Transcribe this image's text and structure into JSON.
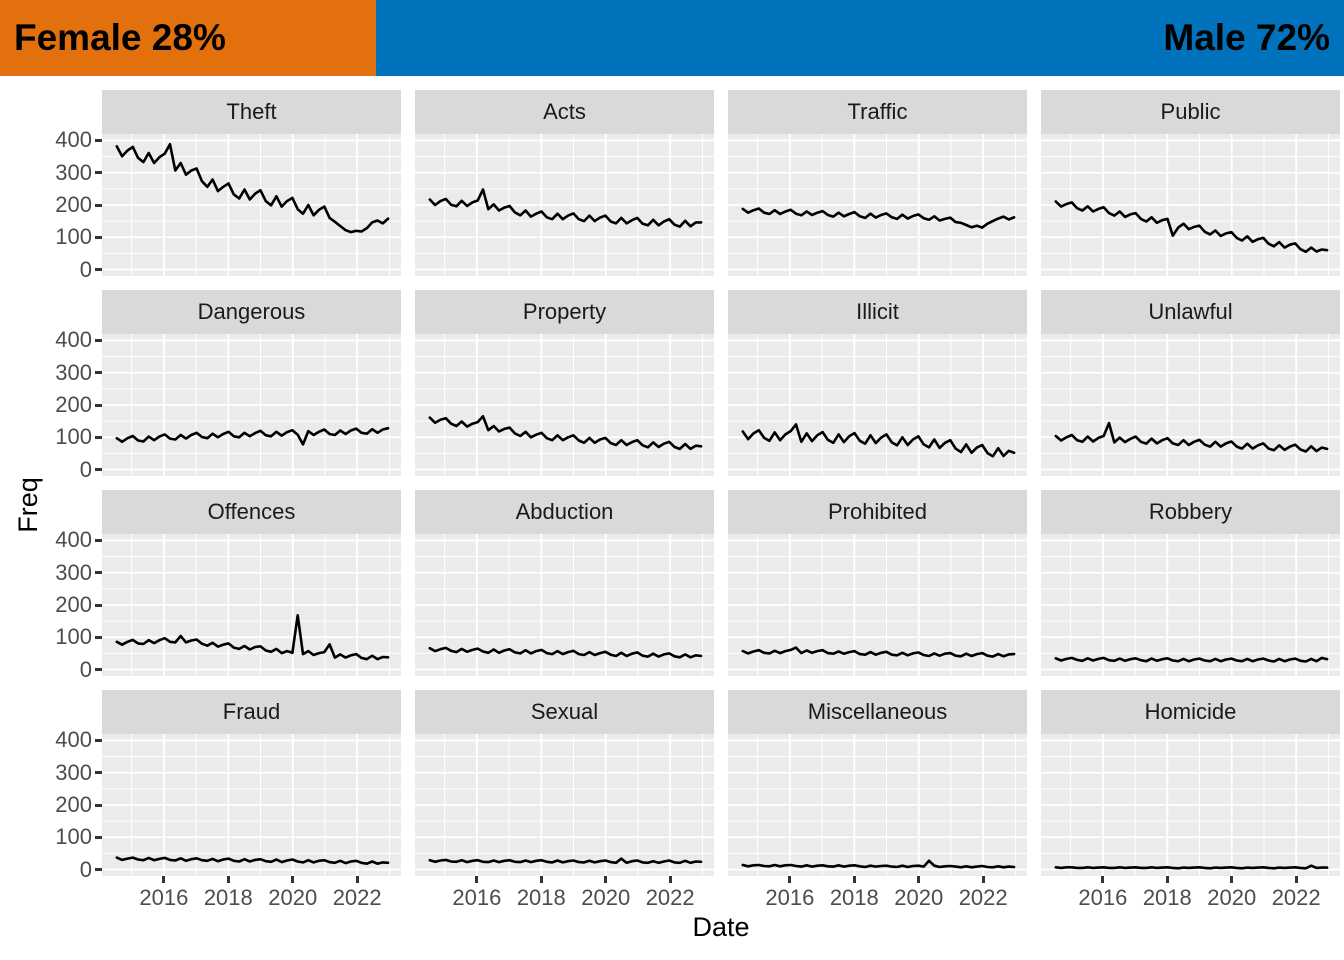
{
  "header": {
    "female_label": "Female 28%",
    "male_label": "Male 72%",
    "female_pct": 28,
    "male_pct": 72,
    "female_color": "#E2700C",
    "male_color": "#0072BC",
    "text_color": "#000000"
  },
  "chart_data": {
    "type": "line",
    "title": "",
    "xlabel": "Date",
    "ylabel": "Freq",
    "legend": "none",
    "grid": true,
    "facet_layout": {
      "rows": 4,
      "cols": 4
    },
    "x_ticks": [
      2016,
      2018,
      2020,
      2022
    ],
    "x_minor": [
      2015,
      2017,
      2019,
      2021,
      2023
    ],
    "y_ticks": [
      0,
      100,
      200,
      300,
      400
    ],
    "y_minor": [
      50,
      150,
      250,
      350
    ],
    "x_domain": [
      2014.08,
      2023.36
    ],
    "y_domain": [
      -20,
      420
    ],
    "x_start": 2014.54,
    "x_end": 2022.96,
    "line_color": "#000000",
    "panel_bg": "#EBEBEB",
    "strip_bg": "#D9D9D9",
    "grid_color": "#FFFFFF",
    "axis_text_color": "#4D4D4D",
    "tick_mark_color": "#333333",
    "facets": [
      {
        "name": "Theft",
        "values": [
          382,
          351,
          369,
          380,
          346,
          333,
          361,
          330,
          348,
          359,
          388,
          307,
          330,
          294,
          307,
          313,
          274,
          256,
          279,
          243,
          256,
          267,
          233,
          220,
          248,
          217,
          235,
          246,
          212,
          199,
          227,
          195,
          212,
          222,
          187,
          173,
          200,
          168,
          185,
          195,
          160,
          148,
          135,
          122,
          116,
          120,
          118,
          128,
          146,
          152,
          143,
          158
        ]
      },
      {
        "name": "Acts",
        "values": [
          217,
          200,
          212,
          219,
          201,
          196,
          213,
          197,
          208,
          214,
          248,
          187,
          202,
          183,
          192,
          197,
          177,
          168,
          183,
          164,
          173,
          180,
          162,
          156,
          173,
          156,
          167,
          174,
          156,
          150,
          167,
          150,
          161,
          167,
          149,
          143,
          160,
          143,
          153,
          160,
          142,
          137,
          154,
          137,
          149,
          156,
          139,
          133,
          151,
          134,
          146,
          146
        ]
      },
      {
        "name": "Traffic",
        "values": [
          188,
          176,
          184,
          189,
          176,
          172,
          184,
          172,
          180,
          185,
          173,
          168,
          180,
          169,
          176,
          181,
          169,
          164,
          176,
          165,
          172,
          178,
          165,
          160,
          173,
          161,
          169,
          174,
          162,
          157,
          170,
          158,
          166,
          171,
          159,
          154,
          165,
          152,
          157,
          161,
          147,
          145,
          138,
          131,
          136,
          130,
          142,
          150,
          158,
          164,
          155,
          162
        ]
      },
      {
        "name": "Public",
        "values": [
          211,
          195,
          203,
          208,
          190,
          183,
          196,
          180,
          188,
          193,
          175,
          167,
          180,
          163,
          171,
          175,
          157,
          149,
          162,
          145,
          153,
          157,
          105,
          130,
          142,
          125,
          132,
          136,
          117,
          109,
          121,
          104,
          112,
          116,
          98,
          90,
          103,
          86,
          94,
          98,
          80,
          72,
          85,
          68,
          77,
          81,
          63,
          55,
          68,
          56,
          62,
          60
        ]
      },
      {
        "name": "Dangerous",
        "values": [
          97,
          86,
          97,
          104,
          90,
          87,
          102,
          91,
          102,
          109,
          96,
          93,
          107,
          96,
          107,
          114,
          101,
          97,
          111,
          100,
          110,
          117,
          103,
          100,
          114,
          103,
          113,
          120,
          106,
          103,
          117,
          105,
          116,
          122,
          108,
          78,
          119,
          107,
          117,
          124,
          110,
          107,
          121,
          110,
          121,
          127,
          114,
          111,
          125,
          114,
          124,
          128
        ]
      },
      {
        "name": "Property",
        "values": [
          161,
          145,
          154,
          159,
          142,
          135,
          149,
          133,
          142,
          147,
          165,
          122,
          135,
          118,
          126,
          130,
          112,
          104,
          117,
          100,
          108,
          114,
          97,
          91,
          106,
          91,
          100,
          106,
          90,
          83,
          98,
          83,
          93,
          98,
          82,
          76,
          91,
          76,
          85,
          91,
          75,
          69,
          84,
          70,
          80,
          86,
          70,
          64,
          79,
          64,
          74,
          72
        ]
      },
      {
        "name": "Illicit",
        "values": [
          118,
          94,
          112,
          122,
          98,
          89,
          115,
          91,
          109,
          119,
          140,
          86,
          112,
          88,
          106,
          116,
          92,
          83,
          109,
          85,
          103,
          113,
          89,
          80,
          106,
          82,
          99,
          109,
          84,
          75,
          100,
          76,
          93,
          103,
          78,
          69,
          93,
          67,
          83,
          91,
          65,
          54,
          78,
          52,
          68,
          76,
          51,
          41,
          66,
          42,
          58,
          52
        ]
      },
      {
        "name": "Unlawful",
        "values": [
          104,
          90,
          100,
          107,
          91,
          86,
          102,
          87,
          98,
          104,
          144,
          84,
          99,
          85,
          95,
          102,
          86,
          80,
          96,
          81,
          91,
          97,
          81,
          76,
          91,
          76,
          86,
          92,
          77,
          71,
          86,
          71,
          81,
          87,
          71,
          65,
          80,
          65,
          75,
          81,
          65,
          60,
          75,
          61,
          71,
          77,
          62,
          56,
          72,
          57,
          68,
          64
        ]
      },
      {
        "name": "Offences",
        "values": [
          86,
          77,
          86,
          92,
          81,
          79,
          91,
          82,
          91,
          97,
          86,
          84,
          104,
          84,
          90,
          93,
          80,
          74,
          83,
          71,
          77,
          81,
          68,
          64,
          73,
          62,
          70,
          72,
          59,
          55,
          64,
          51,
          57,
          52,
          168,
          48,
          57,
          45,
          51,
          54,
          78,
          37,
          47,
          37,
          44,
          48,
          36,
          32,
          43,
          32,
          39,
          38
        ]
      },
      {
        "name": "Abduction",
        "values": [
          66,
          57,
          63,
          67,
          58,
          54,
          64,
          55,
          61,
          65,
          56,
          52,
          62,
          52,
          59,
          63,
          53,
          50,
          60,
          50,
          57,
          61,
          51,
          48,
          57,
          48,
          54,
          58,
          48,
          45,
          54,
          45,
          51,
          55,
          46,
          42,
          52,
          42,
          49,
          53,
          43,
          40,
          49,
          40,
          47,
          50,
          41,
          38,
          47,
          38,
          44,
          42
        ]
      },
      {
        "name": "Prohibited",
        "values": [
          57,
          50,
          56,
          60,
          52,
          50,
          58,
          51,
          57,
          61,
          68,
          51,
          59,
          52,
          57,
          60,
          51,
          49,
          56,
          49,
          54,
          57,
          48,
          46,
          54,
          46,
          52,
          55,
          46,
          44,
          52,
          44,
          50,
          53,
          45,
          42,
          50,
          43,
          49,
          51,
          43,
          41,
          49,
          42,
          48,
          51,
          43,
          40,
          48,
          41,
          47,
          48
        ]
      },
      {
        "name": "Robbery",
        "values": [
          35,
          28,
          33,
          36,
          30,
          27,
          35,
          28,
          33,
          36,
          29,
          27,
          34,
          27,
          32,
          35,
          29,
          26,
          34,
          27,
          32,
          35,
          28,
          26,
          33,
          26,
          31,
          34,
          28,
          26,
          33,
          26,
          31,
          34,
          28,
          26,
          33,
          26,
          31,
          34,
          28,
          25,
          33,
          26,
          31,
          34,
          27,
          25,
          33,
          26,
          36,
          32
        ]
      },
      {
        "name": "Fraud",
        "values": [
          37,
          30,
          34,
          37,
          31,
          29,
          36,
          29,
          33,
          36,
          30,
          28,
          35,
          27,
          32,
          35,
          29,
          27,
          33,
          26,
          31,
          34,
          27,
          25,
          32,
          25,
          30,
          32,
          26,
          24,
          31,
          23,
          28,
          31,
          25,
          22,
          29,
          22,
          27,
          29,
          23,
          21,
          27,
          20,
          25,
          27,
          21,
          18,
          25,
          18,
          22,
          21
        ]
      },
      {
        "name": "Sexual",
        "values": [
          29,
          24,
          28,
          30,
          25,
          24,
          29,
          23,
          27,
          29,
          24,
          23,
          28,
          23,
          27,
          29,
          24,
          23,
          28,
          23,
          27,
          29,
          24,
          22,
          28,
          22,
          26,
          28,
          23,
          22,
          27,
          22,
          26,
          28,
          23,
          21,
          34,
          21,
          26,
          28,
          22,
          21,
          26,
          21,
          25,
          28,
          22,
          21,
          27,
          21,
          25,
          24
        ]
      },
      {
        "name": "Miscellaneous",
        "values": [
          14,
          10,
          13,
          14,
          11,
          10,
          14,
          10,
          13,
          14,
          11,
          9,
          13,
          9,
          12,
          13,
          10,
          9,
          13,
          9,
          12,
          13,
          10,
          8,
          12,
          9,
          11,
          12,
          9,
          8,
          12,
          8,
          11,
          12,
          9,
          27,
          12,
          8,
          10,
          11,
          9,
          7,
          10,
          7,
          9,
          11,
          8,
          7,
          10,
          7,
          9,
          8
        ]
      },
      {
        "name": "Homicide",
        "values": [
          7,
          5,
          7,
          7,
          5,
          5,
          7,
          5,
          6,
          7,
          5,
          5,
          7,
          5,
          6,
          7,
          5,
          5,
          7,
          5,
          6,
          7,
          5,
          4,
          6,
          5,
          6,
          7,
          5,
          4,
          6,
          5,
          6,
          7,
          5,
          4,
          6,
          5,
          6,
          7,
          5,
          4,
          6,
          5,
          6,
          7,
          5,
          4,
          12,
          5,
          6,
          6
        ]
      }
    ]
  }
}
